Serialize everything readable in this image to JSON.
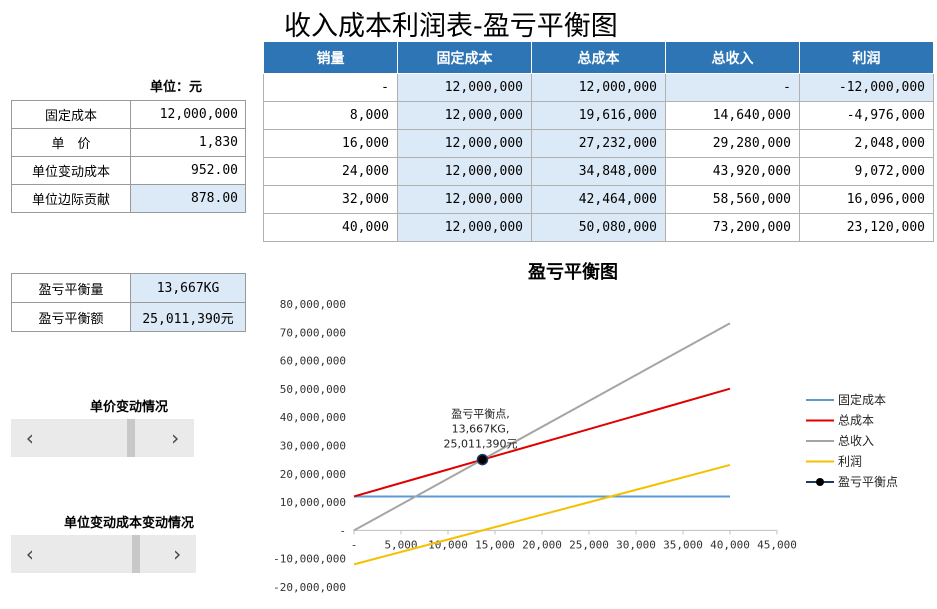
{
  "title": "收入成本利润表-盈亏平衡图",
  "unit_label": "单位：元",
  "params": [
    {
      "label": "固定成本",
      "value": "12,000,000"
    },
    {
      "label": "单　价",
      "value": "1,830"
    },
    {
      "label": "单位变动成本",
      "value": "952.00"
    },
    {
      "label": "单位边际贡献",
      "value": "878.00"
    }
  ],
  "table": {
    "headers": [
      "销量",
      "固定成本",
      "总成本",
      "总收入",
      "利润"
    ],
    "rows": [
      [
        "-",
        "12,000,000",
        "12,000,000",
        "-",
        "-12,000,000"
      ],
      [
        "8,000",
        "12,000,000",
        "19,616,000",
        "14,640,000",
        "-4,976,000"
      ],
      [
        "16,000",
        "12,000,000",
        "27,232,000",
        "29,280,000",
        "2,048,000"
      ],
      [
        "24,000",
        "12,000,000",
        "34,848,000",
        "43,920,000",
        "9,072,000"
      ],
      [
        "32,000",
        "12,000,000",
        "42,464,000",
        "58,560,000",
        "16,096,000"
      ],
      [
        "40,000",
        "12,000,000",
        "50,080,000",
        "73,200,000",
        "23,120,000"
      ]
    ]
  },
  "breakeven": [
    {
      "label": "盈亏平衡量",
      "value": "13,667KG"
    },
    {
      "label": "盈亏平衡额",
      "value": "25,011,390元"
    }
  ],
  "sliders": [
    {
      "title": "单价变动情况",
      "left_arrow": "‹",
      "right_arrow": "›",
      "fraction": 0.75
    },
    {
      "title": "单位变动成本变动情况",
      "left_arrow": "‹",
      "right_arrow": "›",
      "fraction": 0.78
    }
  ],
  "chart_data": {
    "type": "line",
    "title": "盈亏平衡图",
    "x_ticks": [
      "-",
      "5,000",
      "10,000",
      "15,000",
      "20,000",
      "25,000",
      "30,000",
      "35,000",
      "40,000",
      "45,000"
    ],
    "y_ticks": [
      "-20,000,000",
      "-10,000,000",
      "-",
      "10,000,000",
      "20,000,000",
      "30,000,000",
      "40,000,000",
      "50,000,000",
      "60,000,000",
      "70,000,000",
      "80,000,000"
    ],
    "xlim": [
      0,
      45000
    ],
    "ylim": [
      -20000000,
      80000000
    ],
    "x": [
      0,
      8000,
      16000,
      24000,
      32000,
      40000
    ],
    "series": [
      {
        "name": "固定成本",
        "color": "#5b9bd5",
        "values": [
          12000000,
          12000000,
          12000000,
          12000000,
          12000000,
          12000000
        ]
      },
      {
        "name": "总成本",
        "color": "#e00000",
        "values": [
          12000000,
          19616000,
          27232000,
          34848000,
          42464000,
          50080000
        ]
      },
      {
        "name": "总收入",
        "color": "#a5a5a5",
        "values": [
          0,
          14640000,
          29280000,
          43920000,
          58560000,
          73200000
        ]
      },
      {
        "name": "利润",
        "color": "#f5c000",
        "values": [
          -12000000,
          -4976000,
          2048000,
          9072000,
          16096000,
          23120000
        ]
      }
    ],
    "breakeven_point": {
      "name": "盈亏平衡点",
      "x": 13667,
      "y": 25011390,
      "color": "#1f3864"
    },
    "annotation": [
      "盈亏平衡点,",
      "13,667KG,",
      "25,011,390元"
    ]
  }
}
